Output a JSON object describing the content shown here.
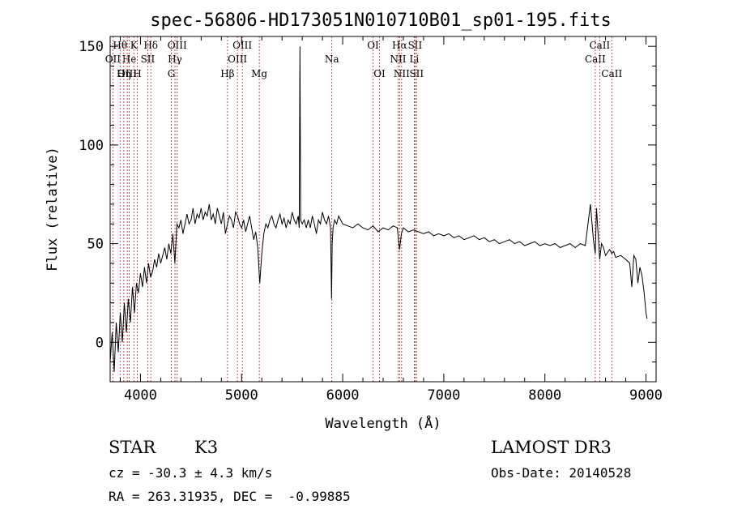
{
  "chart_data": {
    "type": "line",
    "title": "spec-56806-HD173051N010710B01_sp01-195.fits",
    "xlabel": "Wavelength (Å)",
    "ylabel": "Flux (relative)",
    "xlim": [
      3700,
      9100
    ],
    "ylim": [
      -20,
      155
    ],
    "xticks": [
      4000,
      5000,
      6000,
      7000,
      8000,
      9000
    ],
    "xtick_labels": [
      "4000",
      "5000",
      "6000",
      "7000",
      "8000",
      "9000"
    ],
    "yticks": [
      0,
      50,
      100,
      150
    ],
    "ytick_labels": [
      "0",
      "50",
      "100",
      "150"
    ],
    "grid": false,
    "line_color": "#000000",
    "marker_color": "#b22222",
    "spectrum": {
      "x": [
        3700,
        3720,
        3740,
        3760,
        3780,
        3800,
        3820,
        3840,
        3860,
        3880,
        3900,
        3920,
        3940,
        3960,
        3980,
        4000,
        4020,
        4040,
        4060,
        4080,
        4100,
        4120,
        4140,
        4160,
        4180,
        4200,
        4220,
        4240,
        4260,
        4280,
        4300,
        4320,
        4340,
        4360,
        4380,
        4400,
        4420,
        4440,
        4460,
        4480,
        4500,
        4520,
        4540,
        4560,
        4580,
        4600,
        4620,
        4640,
        4660,
        4680,
        4700,
        4720,
        4740,
        4760,
        4780,
        4800,
        4820,
        4840,
        4860,
        4880,
        4900,
        4920,
        4940,
        4960,
        4980,
        5000,
        5020,
        5040,
        5060,
        5080,
        5100,
        5120,
        5140,
        5160,
        5180,
        5200,
        5220,
        5240,
        5260,
        5280,
        5300,
        5320,
        5340,
        5360,
        5380,
        5400,
        5420,
        5440,
        5460,
        5480,
        5500,
        5520,
        5540,
        5560,
        5570,
        5577,
        5584,
        5600,
        5620,
        5640,
        5660,
        5680,
        5700,
        5720,
        5740,
        5760,
        5780,
        5800,
        5820,
        5840,
        5860,
        5880,
        5890,
        5896,
        5905,
        5920,
        5940,
        5960,
        5980,
        6000,
        6050,
        6100,
        6150,
        6200,
        6250,
        6300,
        6350,
        6400,
        6450,
        6500,
        6540,
        6563,
        6580,
        6600,
        6650,
        6700,
        6750,
        6800,
        6850,
        6900,
        6950,
        7000,
        7050,
        7100,
        7150,
        7200,
        7250,
        7300,
        7350,
        7400,
        7450,
        7500,
        7550,
        7600,
        7650,
        7700,
        7750,
        7800,
        7850,
        7900,
        7950,
        8000,
        8050,
        8100,
        8150,
        8200,
        8250,
        8300,
        8350,
        8400,
        8450,
        8480,
        8498,
        8510,
        8530,
        8542,
        8560,
        8580,
        8600,
        8640,
        8662,
        8680,
        8700,
        8750,
        8800,
        8840,
        8860,
        8880,
        8900,
        8920,
        8940,
        8960,
        8980,
        9000,
        9010
      ],
      "y": [
        -10,
        5,
        -15,
        10,
        -5,
        15,
        0,
        20,
        5,
        22,
        10,
        28,
        15,
        30,
        25,
        35,
        28,
        38,
        30,
        40,
        33,
        36,
        42,
        38,
        45,
        40,
        44,
        48,
        42,
        50,
        45,
        55,
        40,
        60,
        58,
        62,
        55,
        60,
        65,
        60,
        62,
        68,
        60,
        65,
        63,
        68,
        62,
        66,
        64,
        70,
        62,
        65,
        60,
        68,
        64,
        60,
        66,
        55,
        60,
        64,
        62,
        58,
        66,
        64,
        60,
        58,
        62,
        56,
        60,
        64,
        58,
        52,
        56,
        48,
        30,
        45,
        55,
        60,
        58,
        62,
        64,
        60,
        58,
        62,
        65,
        60,
        63,
        58,
        62,
        60,
        66,
        62,
        60,
        64,
        58,
        150,
        62,
        60,
        62,
        58,
        62,
        58,
        64,
        60,
        55,
        62,
        60,
        66,
        62,
        60,
        64,
        58,
        22,
        50,
        58,
        62,
        60,
        64,
        62,
        60,
        59,
        58,
        60,
        58,
        57,
        59,
        56,
        58,
        57,
        59,
        58,
        47,
        55,
        58,
        56,
        57,
        56,
        55,
        56,
        54,
        55,
        54,
        55,
        53,
        54,
        52,
        53,
        54,
        52,
        53,
        51,
        52,
        50,
        51,
        52,
        50,
        51,
        49,
        50,
        51,
        49,
        50,
        49,
        50,
        48,
        49,
        50,
        48,
        50,
        49,
        70,
        52,
        45,
        68,
        52,
        42,
        50,
        48,
        44,
        47,
        45,
        46,
        43,
        44,
        42,
        40,
        28,
        44,
        42,
        30,
        38,
        34,
        26,
        15,
        12
      ]
    },
    "lines": [
      {
        "name": "Hθ",
        "x": 3798,
        "row": 0
      },
      {
        "name": "OII",
        "x": 3727,
        "row": 1
      },
      {
        "name": "OIII",
        "x": 3869,
        "row": 2
      },
      {
        "name": "He",
        "x": 3889,
        "row": 1
      },
      {
        "name": "Hη",
        "x": 3835,
        "row": 2
      },
      {
        "name": "K",
        "x": 3934,
        "row": 0
      },
      {
        "name": "H",
        "x": 3968,
        "row": 2
      },
      {
        "name": "SII",
        "x": 4072,
        "row": 1
      },
      {
        "name": "Hδ",
        "x": 4102,
        "row": 0
      },
      {
        "name": "G",
        "x": 4305,
        "row": 2
      },
      {
        "name": "Hγ",
        "x": 4341,
        "row": 1
      },
      {
        "name": "OIII",
        "x": 4363,
        "row": 0
      },
      {
        "name": "Hβ",
        "x": 4861,
        "row": 2
      },
      {
        "name": "OIII",
        "x": 4959,
        "row": 1
      },
      {
        "name": "OIII",
        "x": 5007,
        "row": 0
      },
      {
        "name": "Mg",
        "x": 5175,
        "row": 2
      },
      {
        "name": "Na",
        "x": 5893,
        "row": 1
      },
      {
        "name": "OI",
        "x": 6300,
        "row": 0
      },
      {
        "name": "OI",
        "x": 6364,
        "row": 2
      },
      {
        "name": "NII",
        "x": 6548,
        "row": 1
      },
      {
        "name": "Hα",
        "x": 6563,
        "row": 0
      },
      {
        "name": "NII",
        "x": 6583,
        "row": 2
      },
      {
        "name": "Li",
        "x": 6708,
        "row": 1
      },
      {
        "name": "SII",
        "x": 6716,
        "row": 0
      },
      {
        "name": "SII",
        "x": 6731,
        "row": 2
      },
      {
        "name": "CaII",
        "x": 8498,
        "row": 1
      },
      {
        "name": "CaII",
        "x": 8542,
        "row": 0
      },
      {
        "name": "CaII",
        "x": 8662,
        "row": 2
      }
    ]
  },
  "info": {
    "class_label": "STAR",
    "subclass": "K3",
    "survey": "LAMOST DR3",
    "redshift": "cz = -30.3 ± 4.3 km/s",
    "obs_date": "Obs-Date: 20140528",
    "coords": "RA = 263.31935, DEC =  -0.99885"
  }
}
